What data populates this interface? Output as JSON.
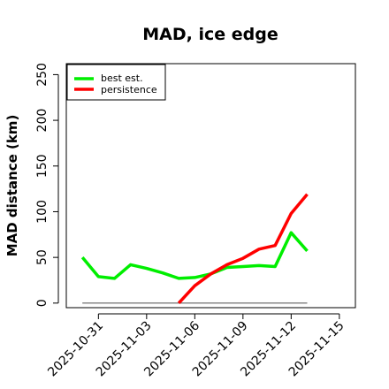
{
  "chart_data": {
    "type": "line",
    "title": "MAD, ice edge",
    "xlabel": "",
    "ylabel": "MAD distance (km)",
    "x": [
      "2025-10-30",
      "2025-10-31",
      "2025-11-01",
      "2025-11-02",
      "2025-11-03",
      "2025-11-04",
      "2025-11-05",
      "2025-11-06",
      "2025-11-07",
      "2025-11-08",
      "2025-11-09",
      "2025-11-10",
      "2025-11-11",
      "2025-11-12",
      "2025-11-13"
    ],
    "xticks": [
      "2025-10-31",
      "2025-11-03",
      "2025-11-06",
      "2025-11-09",
      "2025-11-12",
      "2025-11-15"
    ],
    "xlim": [
      "2025-10-29",
      "2025-11-16"
    ],
    "ylim": [
      -5,
      262
    ],
    "yticks": [
      0,
      50,
      100,
      150,
      200,
      250
    ],
    "grid": false,
    "legend_position": "top-left",
    "series": [
      {
        "name": "best est.",
        "color": "#00ee00",
        "x": [
          "2025-10-30",
          "2025-10-31",
          "2025-11-01",
          "2025-11-02",
          "2025-11-03",
          "2025-11-04",
          "2025-11-05",
          "2025-11-06",
          "2025-11-07",
          "2025-11-08",
          "2025-11-09",
          "2025-11-10",
          "2025-11-11",
          "2025-11-12",
          "2025-11-13"
        ],
        "values": [
          50,
          29,
          27,
          42,
          38,
          33,
          27,
          28,
          32,
          39,
          40,
          41,
          40,
          77,
          57
        ]
      },
      {
        "name": "persistence",
        "color": "#ff0000",
        "x": [
          "2025-11-05",
          "2025-11-06",
          "2025-11-07",
          "2025-11-08",
          "2025-11-09",
          "2025-11-10",
          "2025-11-11",
          "2025-11-12",
          "2025-11-13"
        ],
        "values": [
          0,
          19,
          32,
          42,
          49,
          59,
          63,
          98,
          119
        ]
      }
    ],
    "reference_line": {
      "color": "#606060",
      "x": [
        "2025-10-30",
        "2025-11-13"
      ],
      "value": 0
    }
  }
}
